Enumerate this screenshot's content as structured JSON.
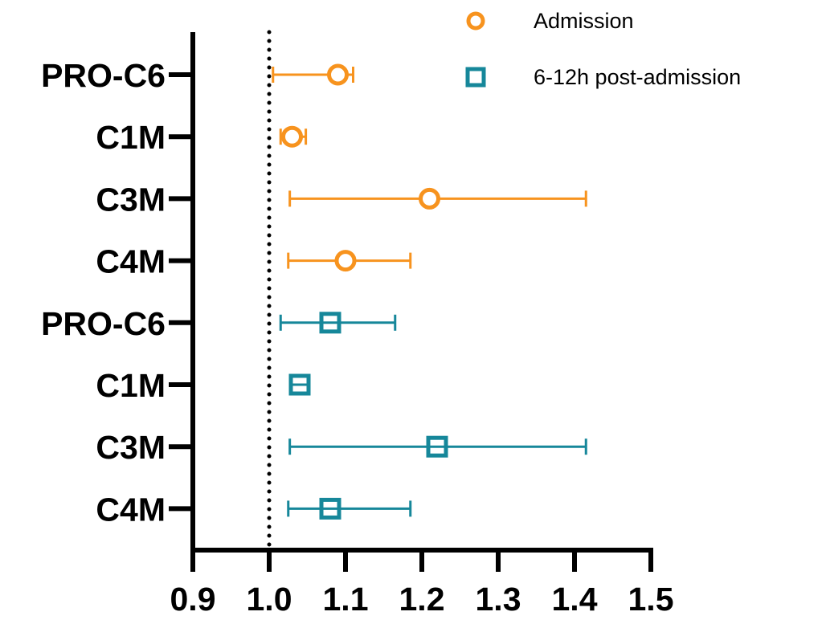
{
  "chart_data": {
    "type": "scatter",
    "title": "",
    "xlabel": "",
    "ylabel": "",
    "xlim": [
      0.9,
      1.5
    ],
    "xticks": [
      "0.9",
      "1.0",
      "1.1",
      "1.2",
      "1.3",
      "1.4",
      "1.5"
    ],
    "reference_line": {
      "x": 1.0,
      "style": "dotted"
    },
    "legend_position": "top-right",
    "categories": [
      "PRO-C6",
      "C1M",
      "C3M",
      "C4M",
      "PRO-C6",
      "C1M",
      "C3M",
      "C4M"
    ],
    "series": [
      {
        "name": "Admission",
        "marker": "circle",
        "color": "#f7931e",
        "rows": [
          0,
          1,
          2,
          3
        ],
        "values": [
          1.09,
          1.03,
          1.21,
          1.1
        ],
        "ci_low": [
          1.005,
          1.015,
          1.027,
          1.025
        ],
        "ci_high": [
          1.11,
          1.048,
          1.415,
          1.185
        ]
      },
      {
        "name": "6-12h post-admission",
        "marker": "square",
        "color": "#16879a",
        "rows": [
          4,
          5,
          6,
          7
        ],
        "values": [
          1.08,
          1.04,
          1.22,
          1.08
        ],
        "ci_low": [
          1.015,
          1.028,
          1.027,
          1.025
        ],
        "ci_high": [
          1.165,
          1.05,
          1.415,
          1.185
        ]
      }
    ]
  }
}
